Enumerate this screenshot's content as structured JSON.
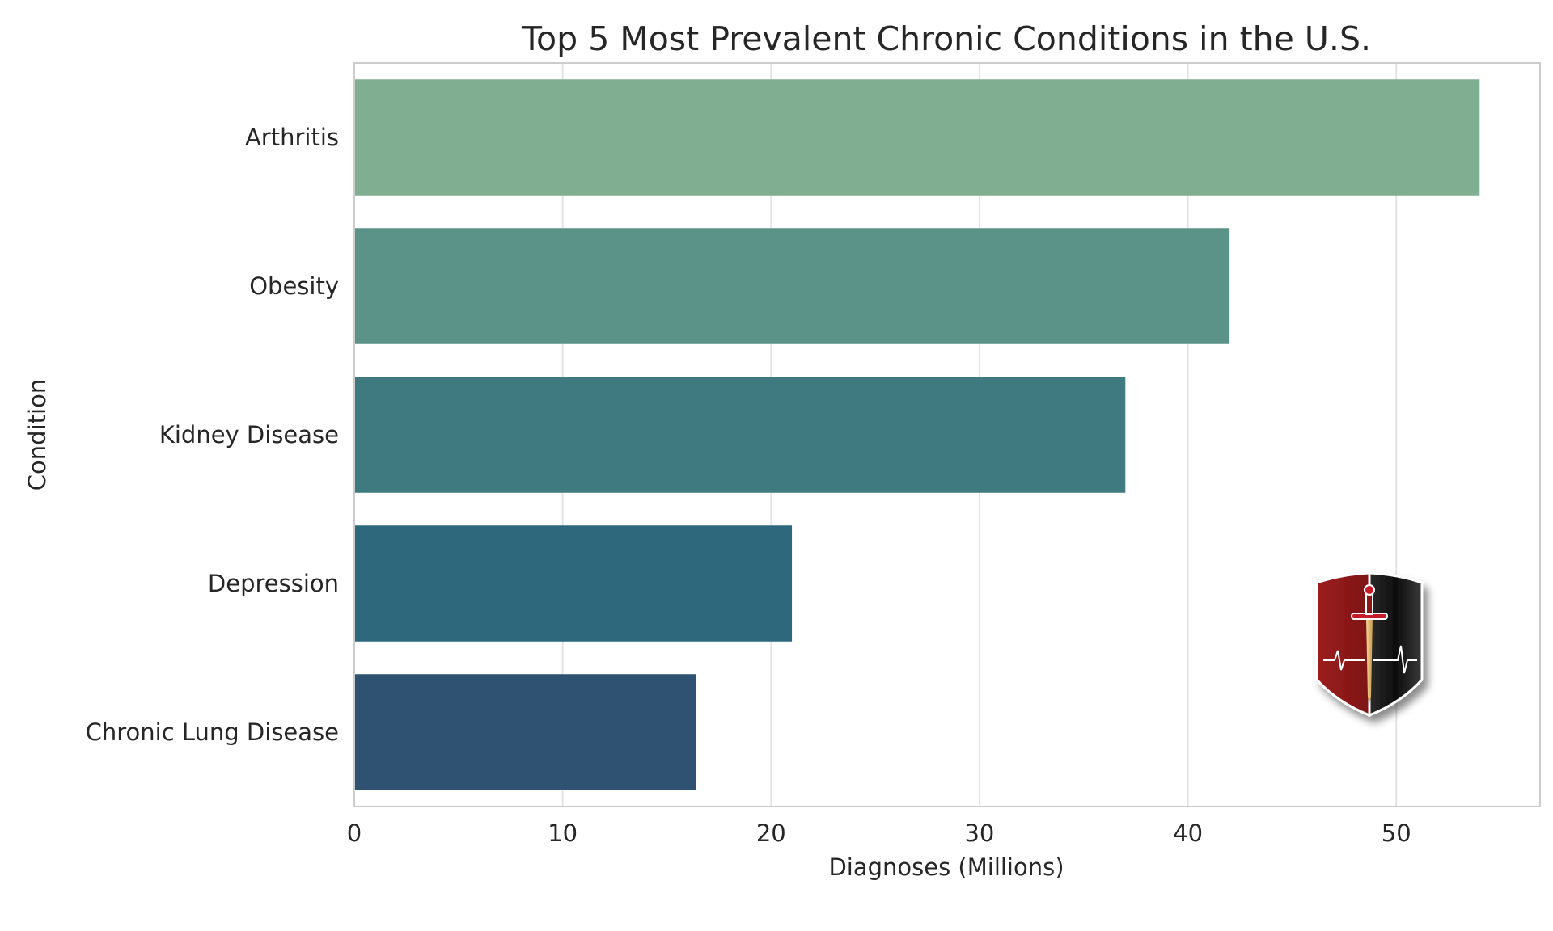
{
  "chart_data": {
    "type": "bar",
    "orientation": "horizontal",
    "title": "Top 5 Most Prevalent Chronic Conditions in the U.S.",
    "xlabel": "Diagnoses (Millions)",
    "ylabel": "Condition",
    "categories": [
      "Arthritis",
      "Obesity",
      "Kidney Disease",
      "Depression",
      "Chronic Lung Disease"
    ],
    "values": [
      54,
      42,
      37,
      21,
      16.4
    ],
    "colors": [
      "#7fae90",
      "#5c9388",
      "#3f7a80",
      "#2d687d",
      "#2f5273"
    ],
    "xlim": [
      0,
      56.9
    ],
    "xticks": [
      0,
      10,
      20,
      30,
      40,
      50
    ],
    "grid": true,
    "logo": "shield-sword-heartbeat"
  }
}
